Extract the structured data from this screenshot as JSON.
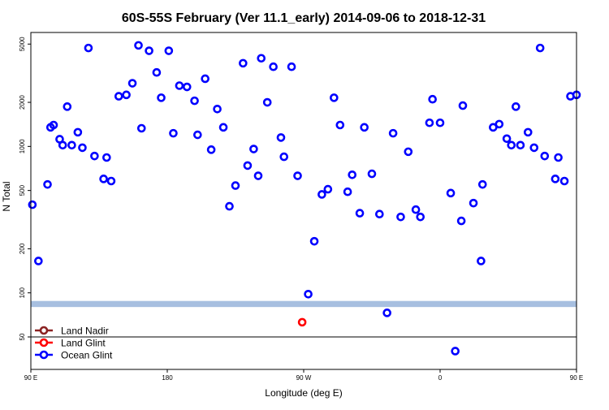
{
  "chart_data": {
    "type": "scatter",
    "title": "60S-55S February (Ver 11.1_early)   2014-09-06 to 2018-12-31",
    "xlabel": "Longitude (deg E)",
    "ylabel": "N Total",
    "y_scale": "log",
    "xlim": [
      90,
      450
    ],
    "ylim": [
      30,
      6000
    ],
    "x_ticks": [
      {
        "value": 90,
        "label": "90 E"
      },
      {
        "value": 180,
        "label": "180"
      },
      {
        "value": 270,
        "label": "90 W"
      },
      {
        "value": 360,
        "label": "0"
      },
      {
        "value": 450,
        "label": "90 E"
      },
      {
        "value": 540,
        "label": "180"
      }
    ],
    "y_ticks": [
      {
        "value": 50,
        "label": "50"
      },
      {
        "value": 100,
        "label": "100"
      },
      {
        "value": 200,
        "label": "200"
      },
      {
        "value": 500,
        "label": "500"
      },
      {
        "value": 1000,
        "label": "1000"
      },
      {
        "value": 2000,
        "label": "2000"
      },
      {
        "value": 5000,
        "label": "5000"
      }
    ],
    "reference_line_y": 50,
    "band": {
      "ymin": 80,
      "ymax": 88,
      "color": "#a7bfe0"
    },
    "legend": {
      "position": "bottom-left",
      "entries": [
        {
          "name": "Land Nadir",
          "color": "#8b2323"
        },
        {
          "name": "Land Glint",
          "color": "#ff0000"
        },
        {
          "name": "Ocean Glint",
          "color": "#0000ff"
        }
      ]
    },
    "series": [
      {
        "name": "Land Glint",
        "color": "#ff0000",
        "points": [
          [
            269,
            63
          ]
        ]
      },
      {
        "name": "Ocean Glint",
        "color": "#0000ff",
        "points": [
          [
            91,
            400
          ],
          [
            95,
            165
          ],
          [
            101,
            550
          ],
          [
            103,
            1350
          ],
          [
            105,
            1400
          ],
          [
            109,
            1120
          ],
          [
            111,
            1020
          ],
          [
            114,
            1870
          ],
          [
            117,
            1020
          ],
          [
            121,
            1250
          ],
          [
            124,
            980
          ],
          [
            128,
            4700
          ],
          [
            132,
            860
          ],
          [
            138,
            600
          ],
          [
            140,
            840
          ],
          [
            143,
            580
          ],
          [
            148,
            2200
          ],
          [
            153,
            2250
          ],
          [
            157,
            2700
          ],
          [
            161,
            4900
          ],
          [
            163,
            1330
          ],
          [
            168,
            4500
          ],
          [
            173,
            3200
          ],
          [
            176,
            2150
          ],
          [
            181,
            4500
          ],
          [
            184,
            1230
          ],
          [
            188,
            2600
          ],
          [
            193,
            2550
          ],
          [
            198,
            2050
          ],
          [
            200,
            1200
          ],
          [
            205,
            2900
          ],
          [
            209,
            950
          ],
          [
            213,
            1800
          ],
          [
            217,
            1350
          ],
          [
            221,
            390
          ],
          [
            225,
            540
          ],
          [
            230,
            3700
          ],
          [
            233,
            740
          ],
          [
            237,
            960
          ],
          [
            240,
            630
          ],
          [
            242,
            4000
          ],
          [
            246,
            2000
          ],
          [
            250,
            3500
          ],
          [
            255,
            1150
          ],
          [
            257,
            850
          ],
          [
            262,
            3500
          ],
          [
            266,
            630
          ],
          [
            273,
            98
          ],
          [
            277,
            225
          ],
          [
            282,
            470
          ],
          [
            286,
            510
          ],
          [
            290,
            2150
          ],
          [
            294,
            1400
          ],
          [
            299,
            490
          ],
          [
            302,
            640
          ],
          [
            307,
            350
          ],
          [
            310,
            1350
          ],
          [
            315,
            650
          ],
          [
            320,
            345
          ],
          [
            325,
            73
          ],
          [
            329,
            1230
          ],
          [
            334,
            330
          ],
          [
            339,
            920
          ],
          [
            344,
            370
          ],
          [
            347,
            330
          ],
          [
            353,
            1450
          ],
          [
            355,
            2100
          ],
          [
            360,
            1450
          ],
          [
            367,
            480
          ],
          [
            370,
            40
          ],
          [
            374,
            310
          ],
          [
            375,
            1900
          ],
          [
            382,
            410
          ],
          [
            387,
            165
          ],
          [
            388,
            550
          ],
          [
            395,
            1350
          ],
          [
            399,
            1420
          ],
          [
            404,
            1130
          ],
          [
            407,
            1020
          ],
          [
            410,
            1870
          ],
          [
            413,
            1020
          ],
          [
            418,
            1250
          ],
          [
            422,
            980
          ],
          [
            426,
            4700
          ],
          [
            429,
            860
          ],
          [
            436,
            600
          ],
          [
            438,
            840
          ],
          [
            442,
            580
          ],
          [
            446,
            2200
          ],
          [
            450,
            2250
          ]
        ]
      }
    ]
  }
}
